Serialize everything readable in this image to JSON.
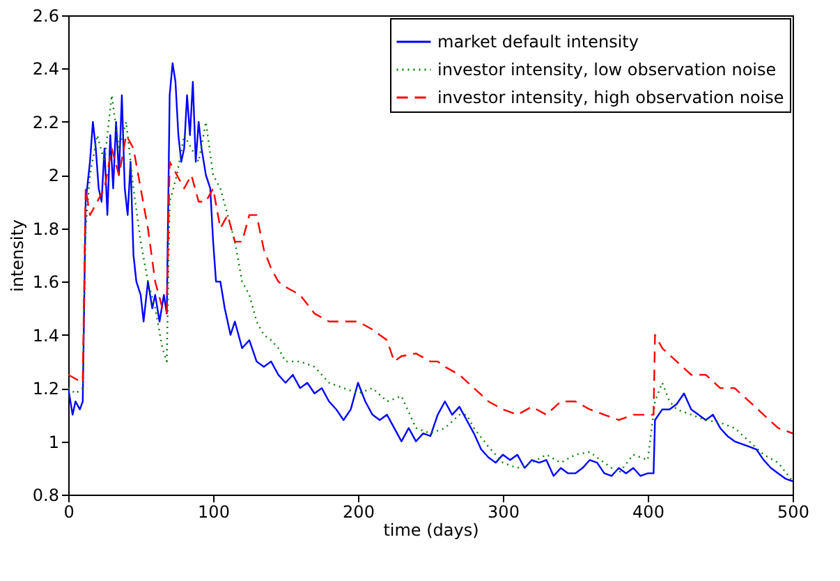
{
  "chart_data": {
    "type": "line",
    "xlabel": "time (days)",
    "ylabel": "intensity",
    "xlim": [
      0,
      500
    ],
    "ylim": [
      0.8,
      2.6
    ],
    "xticks": [
      0,
      100,
      200,
      300,
      400,
      500
    ],
    "yticks": [
      0.8,
      1,
      1.2,
      1.4,
      1.6,
      1.8,
      2,
      2.2,
      2.4,
      2.6
    ],
    "grid": false,
    "legend": "top right",
    "marker": "none",
    "series": [
      {
        "name": "market default intensity",
        "color": "#0000ff",
        "line_style": "solid",
        "x": [
          0,
          3,
          5,
          8,
          10,
          12,
          15,
          17,
          19,
          21,
          23,
          25,
          27,
          29,
          31,
          33,
          35,
          37,
          39,
          41,
          43,
          45,
          47,
          50,
          52,
          55,
          58,
          60,
          63,
          66,
          68,
          70,
          72,
          74,
          76,
          78,
          80,
          82,
          84,
          86,
          88,
          90,
          92,
          95,
          98,
          100,
          102,
          105,
          108,
          112,
          115,
          120,
          125,
          130,
          135,
          140,
          145,
          150,
          155,
          160,
          165,
          170,
          175,
          180,
          185,
          190,
          195,
          200,
          205,
          210,
          215,
          220,
          225,
          230,
          235,
          240,
          245,
          250,
          255,
          260,
          265,
          270,
          275,
          280,
          285,
          290,
          295,
          300,
          305,
          310,
          315,
          320,
          325,
          330,
          335,
          340,
          345,
          350,
          355,
          360,
          365,
          370,
          375,
          380,
          385,
          390,
          395,
          400,
          404,
          405,
          410,
          415,
          420,
          425,
          430,
          435,
          440,
          445,
          450,
          455,
          460,
          465,
          470,
          475,
          480,
          485,
          490,
          495,
          500
        ],
        "values": [
          1.2,
          1.1,
          1.15,
          1.12,
          1.15,
          1.9,
          2.05,
          2.2,
          2.1,
          1.95,
          1.9,
          2.1,
          1.85,
          2.15,
          1.95,
          2.2,
          2.0,
          2.3,
          1.95,
          1.85,
          2.05,
          1.7,
          1.6,
          1.55,
          1.45,
          1.6,
          1.5,
          1.55,
          1.45,
          1.55,
          1.48,
          2.3,
          2.42,
          2.35,
          2.15,
          2.05,
          2.1,
          2.3,
          2.15,
          2.35,
          2.05,
          2.2,
          2.1,
          2.0,
          1.95,
          1.75,
          1.6,
          1.6,
          1.5,
          1.4,
          1.45,
          1.35,
          1.38,
          1.3,
          1.28,
          1.3,
          1.25,
          1.22,
          1.25,
          1.2,
          1.22,
          1.18,
          1.2,
          1.15,
          1.12,
          1.08,
          1.12,
          1.22,
          1.15,
          1.1,
          1.08,
          1.1,
          1.05,
          1.0,
          1.05,
          1.0,
          1.03,
          1.02,
          1.1,
          1.15,
          1.1,
          1.13,
          1.08,
          1.03,
          0.97,
          0.94,
          0.92,
          0.95,
          0.93,
          0.95,
          0.9,
          0.93,
          0.92,
          0.93,
          0.87,
          0.9,
          0.88,
          0.88,
          0.9,
          0.93,
          0.92,
          0.88,
          0.87,
          0.9,
          0.88,
          0.9,
          0.87,
          0.88,
          0.88,
          1.08,
          1.12,
          1.12,
          1.14,
          1.18,
          1.12,
          1.1,
          1.08,
          1.1,
          1.05,
          1.02,
          1.0,
          0.99,
          0.98,
          0.97,
          0.93,
          0.9,
          0.88,
          0.86,
          0.85
        ]
      },
      {
        "name": "investor intensity, low observation noise",
        "color": "#008000",
        "line_style": "dotted",
        "x": [
          0,
          5,
          10,
          12,
          15,
          20,
          25,
          30,
          35,
          40,
          45,
          50,
          55,
          60,
          65,
          68,
          70,
          75,
          80,
          85,
          90,
          95,
          100,
          105,
          110,
          115,
          120,
          125,
          130,
          135,
          140,
          145,
          150,
          160,
          170,
          180,
          190,
          200,
          210,
          220,
          230,
          240,
          250,
          260,
          270,
          275,
          280,
          290,
          300,
          310,
          320,
          330,
          340,
          350,
          360,
          370,
          380,
          390,
          400,
          405,
          410,
          415,
          420,
          430,
          440,
          450,
          460,
          470,
          480,
          490,
          500
        ],
        "values": [
          1.2,
          1.18,
          1.2,
          1.8,
          2.0,
          2.15,
          2.05,
          2.3,
          2.1,
          2.2,
          1.95,
          1.75,
          1.6,
          1.5,
          1.35,
          1.3,
          1.9,
          2.0,
          2.15,
          2.1,
          2.05,
          2.2,
          2.0,
          1.95,
          1.85,
          1.75,
          1.6,
          1.55,
          1.45,
          1.4,
          1.38,
          1.35,
          1.3,
          1.3,
          1.28,
          1.22,
          1.2,
          1.18,
          1.2,
          1.15,
          1.17,
          1.05,
          1.03,
          1.05,
          1.1,
          1.1,
          1.05,
          0.98,
          0.92,
          0.9,
          0.92,
          0.95,
          0.92,
          0.95,
          0.96,
          0.92,
          0.88,
          0.95,
          0.93,
          1.15,
          1.22,
          1.15,
          1.12,
          1.1,
          1.08,
          1.07,
          1.05,
          1.0,
          0.95,
          0.92,
          0.85
        ]
      },
      {
        "name": "investor intensity, high observation noise",
        "color": "#ff0000",
        "line_style": "dashed",
        "x": [
          0,
          10,
          12,
          15,
          20,
          25,
          30,
          35,
          40,
          45,
          50,
          55,
          60,
          65,
          68,
          70,
          75,
          80,
          85,
          90,
          95,
          100,
          105,
          110,
          115,
          120,
          125,
          130,
          135,
          140,
          145,
          150,
          160,
          170,
          180,
          190,
          200,
          210,
          215,
          220,
          225,
          230,
          240,
          250,
          255,
          260,
          270,
          280,
          290,
          300,
          310,
          320,
          330,
          340,
          350,
          360,
          370,
          380,
          390,
          400,
          404,
          405,
          410,
          420,
          430,
          440,
          450,
          460,
          470,
          480,
          490,
          500
        ],
        "values": [
          1.25,
          1.22,
          1.95,
          1.85,
          1.9,
          1.95,
          2.1,
          2.0,
          2.15,
          2.1,
          1.95,
          1.8,
          1.6,
          1.5,
          1.48,
          2.05,
          2.0,
          1.95,
          2.0,
          1.9,
          1.9,
          1.95,
          1.8,
          1.85,
          1.75,
          1.75,
          1.85,
          1.85,
          1.72,
          1.65,
          1.6,
          1.58,
          1.55,
          1.48,
          1.45,
          1.45,
          1.45,
          1.42,
          1.4,
          1.38,
          1.3,
          1.32,
          1.33,
          1.3,
          1.3,
          1.28,
          1.25,
          1.2,
          1.15,
          1.12,
          1.1,
          1.13,
          1.1,
          1.15,
          1.15,
          1.12,
          1.1,
          1.08,
          1.1,
          1.1,
          1.1,
          1.4,
          1.35,
          1.3,
          1.25,
          1.25,
          1.2,
          1.2,
          1.15,
          1.1,
          1.05,
          1.03
        ]
      }
    ]
  }
}
